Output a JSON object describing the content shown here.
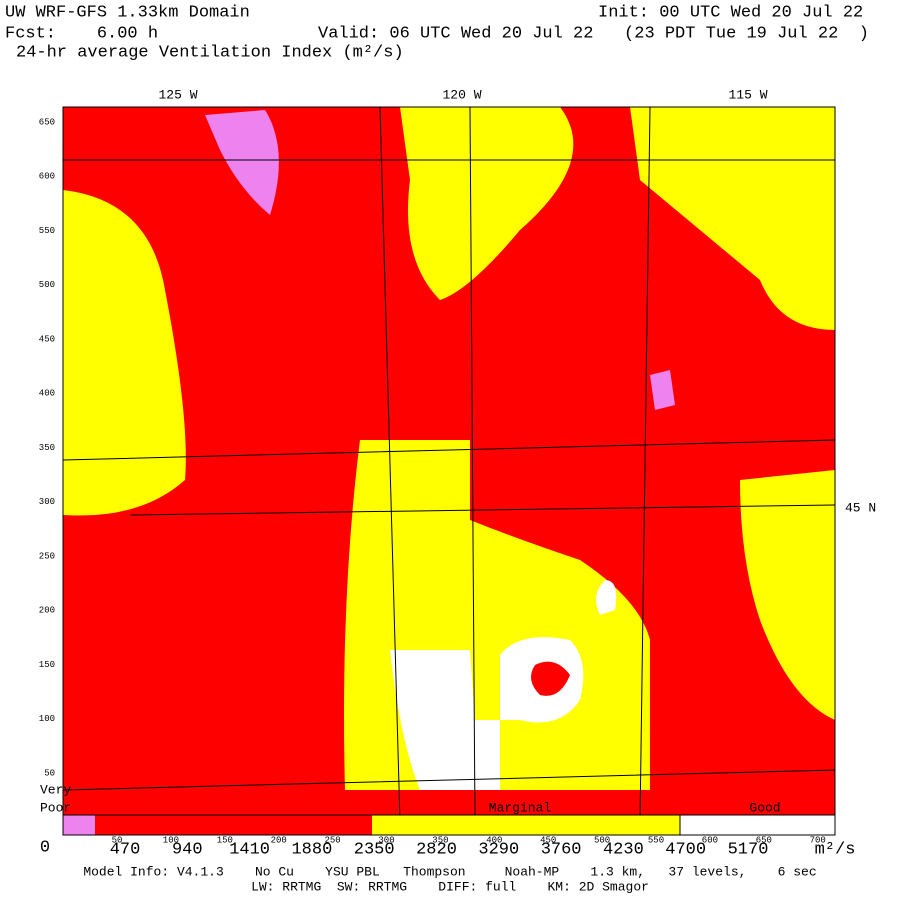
{
  "header": {
    "title": "UW WRF-GFS 1.33km Domain",
    "init": "Init: 00 UTC Wed 20 Jul 22",
    "forecast": "Fcst:    6.00 h",
    "valid": "Valid: 06 UTC Wed 20 Jul 22   (23 PDT Tue 19 Jul 22  )",
    "field": "24-hr average Ventilation Index (m²/s)"
  },
  "map": {
    "longitude_labels": [
      "125 W",
      "120 W",
      "115 W"
    ],
    "latitude_label": "45 N",
    "grid_labels": [
      "650",
      "600",
      "550",
      "500",
      "450",
      "400",
      "350",
      "300",
      "250",
      "200",
      "150",
      "100",
      "50"
    ]
  },
  "legend": {
    "categories": [
      "Very",
      "Poor",
      "Marginal",
      "Good"
    ],
    "bar_ticks": [
      "50",
      "100",
      "150",
      "200",
      "250",
      "300",
      "350",
      "400",
      "450",
      "500",
      "550",
      "600",
      "650",
      "700"
    ],
    "bar_labels": [
      "0",
      "470",
      "940",
      "1410",
      "1880",
      "2350",
      "2820",
      "3290",
      "3760",
      "4230",
      "4700",
      "5170"
    ],
    "units": "m²/s"
  },
  "footer": {
    "line1": "Model Info: V4.1.3    No Cu    YSU PBL   Thompson     Noah-MP    1.3 km,   37 levels,    6 sec",
    "line2": "LW: RRTMG  SW: RRTMG    DIFF: full    KM: 2D Smagor"
  }
}
